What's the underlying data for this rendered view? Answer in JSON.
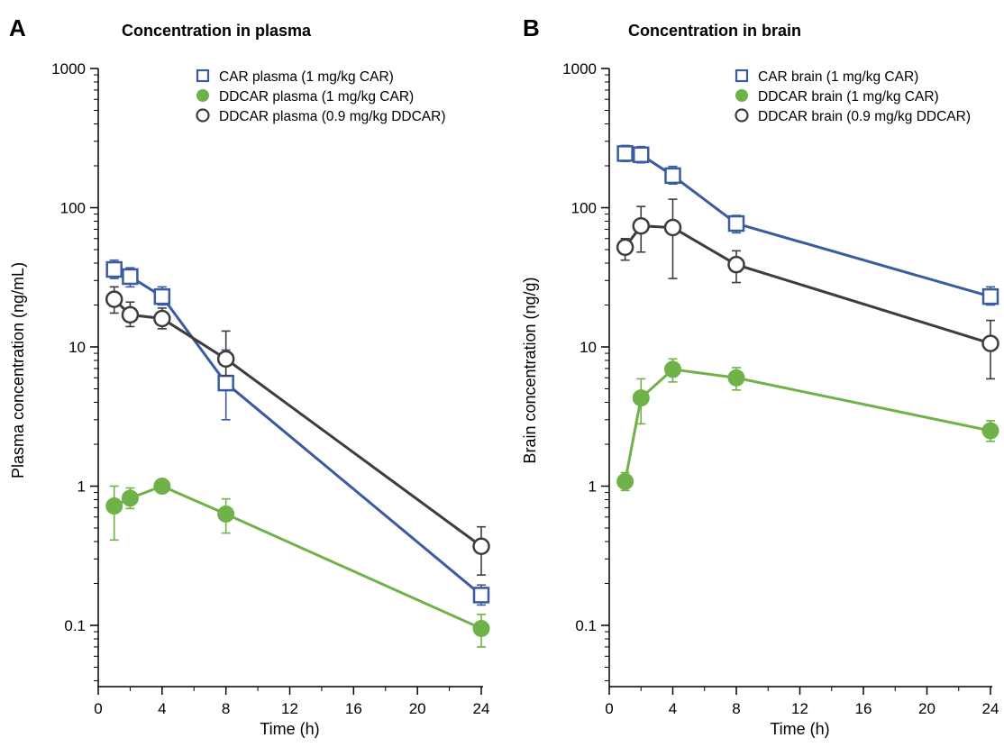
{
  "chart_data": [
    {
      "panel_label": "A",
      "type": "line",
      "title": "Concentration in plasma",
      "xlabel": "Time (h)",
      "ylabel": "Plasma concentration (ng/mL)",
      "xlim": [
        0,
        24
      ],
      "ylim": [
        0.04,
        1000
      ],
      "yscale": "log",
      "xticks": [
        0,
        4,
        8,
        12,
        16,
        20,
        24
      ],
      "xtick_labels": [
        "0",
        "4",
        "8",
        "12",
        "16",
        "20",
        "24"
      ],
      "yticks": [
        0.1,
        1,
        10,
        100,
        1000
      ],
      "ytick_labels": [
        "0.1",
        "1",
        "10",
        "100",
        "1000"
      ],
      "grid": false,
      "legend_position": "top-right",
      "series": [
        {
          "name": "CAR plasma (1 mg/kg CAR)",
          "marker": "open-square",
          "color": "#3a5ba0",
          "x": [
            1,
            2,
            4,
            8,
            24
          ],
          "y": [
            36,
            32,
            23,
            5.5,
            0.165
          ],
          "err_low": [
            31,
            27,
            20,
            3.0,
            0.14
          ],
          "err_high": [
            42,
            37,
            27,
            9.5,
            0.195
          ]
        },
        {
          "name": "DDCAR plasma (1 mg/kg CAR)",
          "marker": "filled-circle",
          "color": "#6fb24a",
          "x": [
            1,
            2,
            4,
            8,
            24
          ],
          "y": [
            0.72,
            0.82,
            1.0,
            0.63,
            0.095
          ],
          "err_low": [
            0.41,
            0.69,
            0.93,
            0.46,
            0.07
          ],
          "err_high": [
            1.0,
            0.97,
            1.07,
            0.81,
            0.12
          ]
        },
        {
          "name": "DDCAR plasma (0.9 mg/kg DDCAR)",
          "marker": "open-circle",
          "color": "#3d3d3d",
          "x": [
            1,
            2,
            4,
            8,
            24
          ],
          "y": [
            22,
            17,
            16,
            8.2,
            0.37
          ],
          "err_low": [
            17.5,
            14,
            13.5,
            6.2,
            0.23
          ],
          "err_high": [
            27,
            21,
            19,
            13,
            0.51
          ]
        }
      ]
    },
    {
      "panel_label": "B",
      "type": "line",
      "title": "Concentration in brain",
      "xlabel": "Time (h)",
      "ylabel": "Brain concentration (ng/g)",
      "xlim": [
        0,
        24
      ],
      "ylim": [
        0.04,
        1000
      ],
      "yscale": "log",
      "xticks": [
        0,
        4,
        8,
        12,
        16,
        20,
        24
      ],
      "xtick_labels": [
        "0",
        "4",
        "8",
        "12",
        "16",
        "20",
        "24"
      ],
      "yticks": [
        0.1,
        1,
        10,
        100,
        1000
      ],
      "ytick_labels": [
        "0.1",
        "1",
        "10",
        "100",
        "1000"
      ],
      "grid": false,
      "legend_position": "top-right",
      "series": [
        {
          "name": "CAR brain (1 mg/kg CAR)",
          "marker": "open-square",
          "color": "#3a5ba0",
          "x": [
            1,
            2,
            4,
            8,
            24
          ],
          "y": [
            245,
            240,
            170,
            77,
            23
          ],
          "err_low": [
            215,
            210,
            148,
            66,
            20
          ],
          "err_high": [
            280,
            275,
            198,
            88,
            27
          ]
        },
        {
          "name": "DDCAR brain (1 mg/kg CAR)",
          "marker": "filled-circle",
          "color": "#6fb24a",
          "x": [
            1,
            2,
            4,
            8,
            24
          ],
          "y": [
            1.08,
            4.3,
            6.9,
            6.0,
            2.5
          ],
          "err_low": [
            0.93,
            2.8,
            5.6,
            4.9,
            2.1
          ],
          "err_high": [
            1.25,
            5.9,
            8.2,
            7.1,
            2.95
          ]
        },
        {
          "name": "DDCAR brain (0.9 mg/kg DDCAR)",
          "marker": "open-circle",
          "color": "#3d3d3d",
          "x": [
            1,
            2,
            4,
            8,
            24
          ],
          "y": [
            52,
            74,
            72,
            39,
            10.6
          ],
          "err_low": [
            42,
            48,
            31,
            29,
            5.9
          ],
          "err_high": [
            60,
            102,
            115,
            49,
            15.5
          ]
        }
      ]
    }
  ]
}
